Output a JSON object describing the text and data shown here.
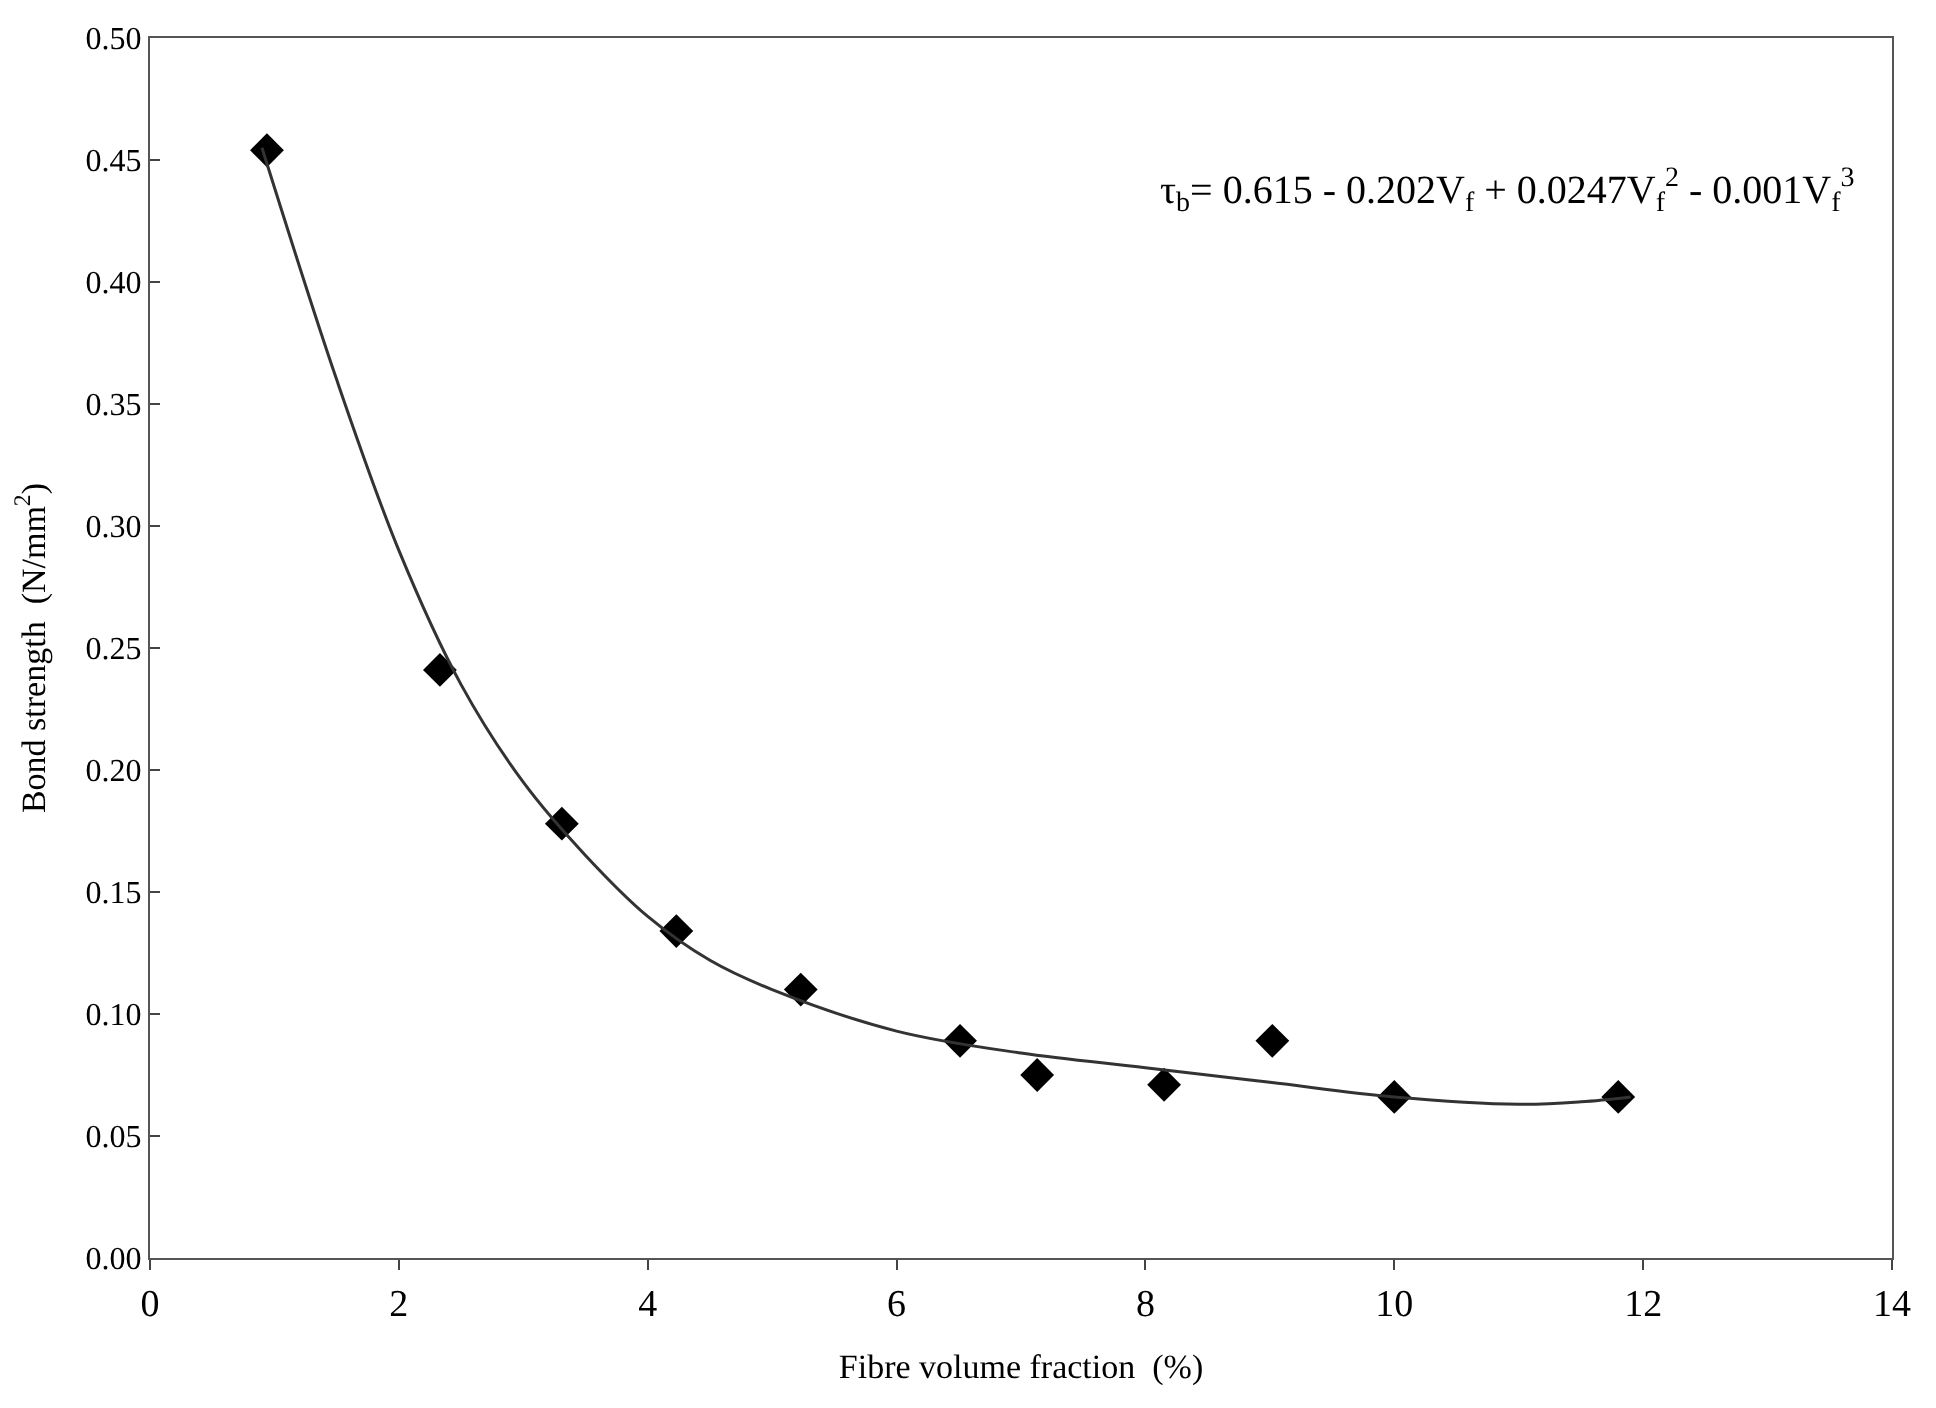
{
  "chart_data": {
    "type": "scatter",
    "xlabel": "Fibre volume fraction  (%)",
    "ylabel": "Bond strength  (N/mm$^{2}$)",
    "annotations": [
      "τ$_{b}$= 0.615 - 0.202V$_{f}$ + 0.0247V$_{f}$$^{2}$ - 0.001V$_{f}$$^{3}$"
    ],
    "xlim": [
      0,
      14
    ],
    "xticks": [
      0,
      2,
      4,
      6,
      8,
      10,
      12,
      14
    ],
    "ylim": [
      0,
      0.5
    ],
    "yticks": [
      {
        "value": 0,
        "label": "0.00"
      },
      {
        "value": 0.05,
        "label": "0.05"
      },
      {
        "value": 0.1,
        "label": "0.10"
      },
      {
        "value": 0.15,
        "label": "0.15"
      },
      {
        "value": 0.2,
        "label": "0.20"
      },
      {
        "value": 0.25,
        "label": "0.25"
      },
      {
        "value": 0.3,
        "label": "0.30"
      },
      {
        "value": 0.35,
        "label": "0.35"
      },
      {
        "value": 0.4,
        "label": "0.40"
      },
      {
        "value": 0.45,
        "label": "0.45"
      },
      {
        "value": 0.5,
        "label": "0.50"
      }
    ],
    "series": [
      {
        "color": "#000000",
        "marker": "diamond",
        "x": [
          0.94,
          2.33,
          3.31,
          4.23,
          5.23,
          6.51,
          7.13,
          8.15,
          9.02,
          10.0,
          11.8
        ],
        "values": [
          0.454,
          0.241,
          0.178,
          0.134,
          0.11,
          0.089,
          0.075,
          0.071,
          0.089,
          0.066,
          0.066
        ]
      },
      {
        "type": "line",
        "color": "#333333",
        "line_style": "solid",
        "x": [
          0.9,
          1.5,
          2,
          2.5,
          3,
          3.5,
          4,
          4.5,
          5,
          6,
          7,
          8,
          9,
          10,
          11,
          11.5,
          11.9
        ],
        "values": [
          0.455,
          0.36,
          0.29,
          0.235,
          0.195,
          0.165,
          0.14,
          0.122,
          0.11,
          0.093,
          0.084,
          0.078,
          0.072,
          0.066,
          0.063,
          0.064,
          0.066
        ]
      }
    ]
  }
}
